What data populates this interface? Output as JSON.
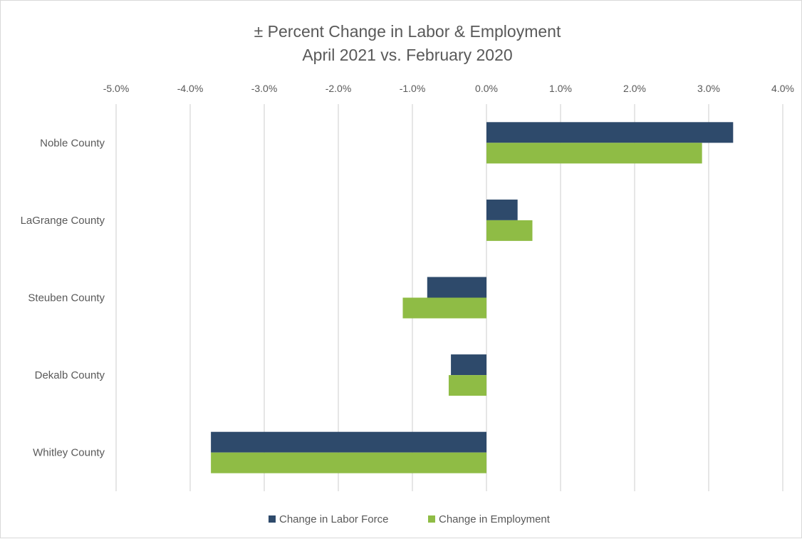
{
  "chart_data": {
    "type": "bar",
    "orientation": "horizontal",
    "title": "± Percent Change in Labor & Employment",
    "subtitle": "April 2021 vs. February 2020",
    "xlabel": "",
    "ylabel": "",
    "xlim": [
      -0.05,
      0.04
    ],
    "x_ticks": [
      -0.05,
      -0.04,
      -0.03,
      -0.02,
      -0.01,
      0,
      0.01,
      0.02,
      0.03,
      0.04
    ],
    "x_tick_labels": [
      "-5.0%",
      "-4.0%",
      "-3.0%",
      "-2.0%",
      "-1.0%",
      "0.0%",
      "1.0%",
      "2.0%",
      "3.0%",
      "4.0%"
    ],
    "x_axis_position": "top",
    "grid": true,
    "legend_position": "bottom",
    "categories": [
      "Noble County",
      "LaGrange County",
      "Steuben County",
      "Dekalb County",
      "Whitley County"
    ],
    "series": [
      {
        "name": "Change in Labor Force",
        "color": "#2e4a6b",
        "values": [
          0.0333,
          0.0042,
          -0.008,
          -0.0048,
          -0.0372
        ]
      },
      {
        "name": "Change in Employment",
        "color": "#8fbc45",
        "values": [
          0.0291,
          0.0062,
          -0.0113,
          -0.0051,
          -0.0372
        ]
      }
    ]
  }
}
